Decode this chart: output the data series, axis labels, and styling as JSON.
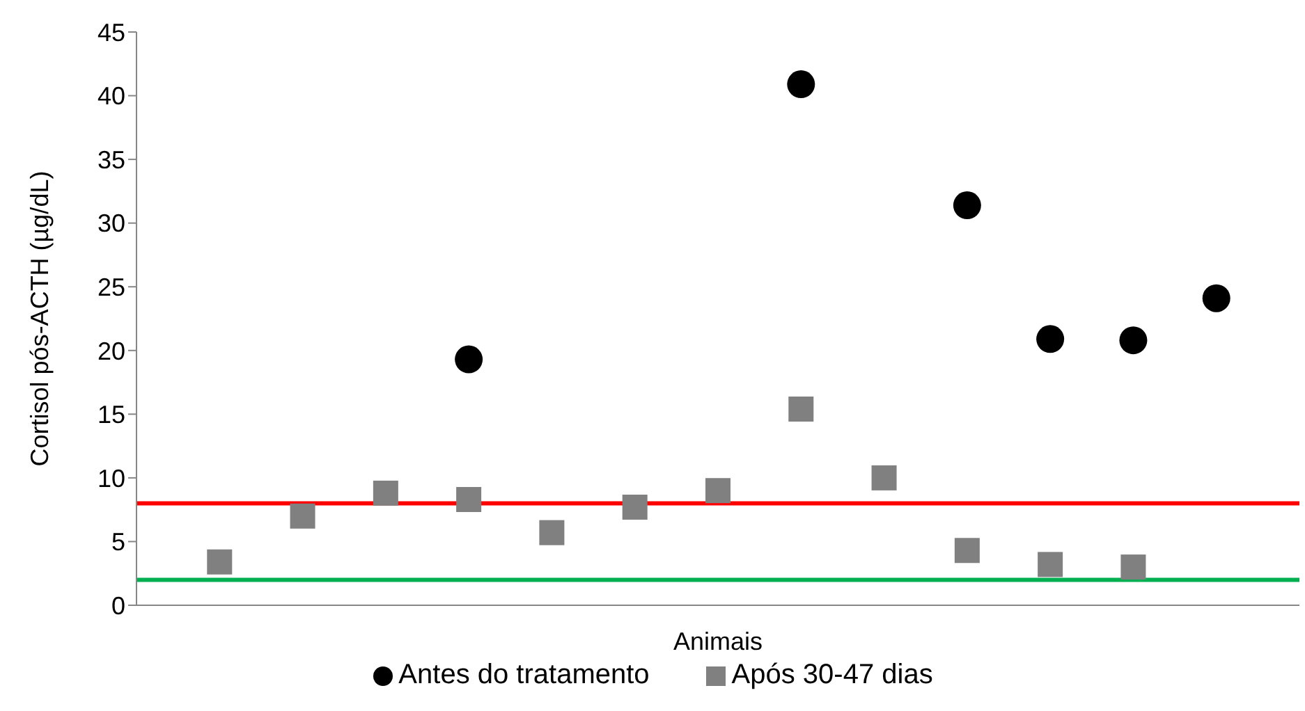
{
  "chart_data": {
    "type": "scatter",
    "xlabel": "Animais",
    "ylabel": "Cortisol pós-ACTH (µg/dL)",
    "categories": [
      null,
      null,
      null,
      null,
      null,
      null,
      null,
      null,
      null,
      null,
      null,
      null,
      null
    ],
    "series": [
      {
        "name": "Antes do tratamento",
        "color": "#000000",
        "marker": "circle",
        "values": [
          null,
          null,
          null,
          19.3,
          null,
          null,
          null,
          40.9,
          null,
          31.4,
          20.9,
          20.8,
          24.1
        ]
      },
      {
        "name": "Após 30-47 dias",
        "color": "#808080",
        "marker": "square",
        "values": [
          3.4,
          7.0,
          8.8,
          8.3,
          5.7,
          7.7,
          9.0,
          15.4,
          10.0,
          4.3,
          3.2,
          3.0,
          null
        ]
      }
    ],
    "ylim": [
      0,
      45
    ],
    "yticks": [
      0,
      5,
      10,
      15,
      20,
      25,
      30,
      35,
      40,
      45
    ],
    "grid": false,
    "legend": "bottom",
    "ref_lines": [
      {
        "axis": "y",
        "value": 8,
        "color": "#ff0000"
      },
      {
        "axis": "y",
        "value": 2,
        "color": "#00b050"
      }
    ]
  }
}
